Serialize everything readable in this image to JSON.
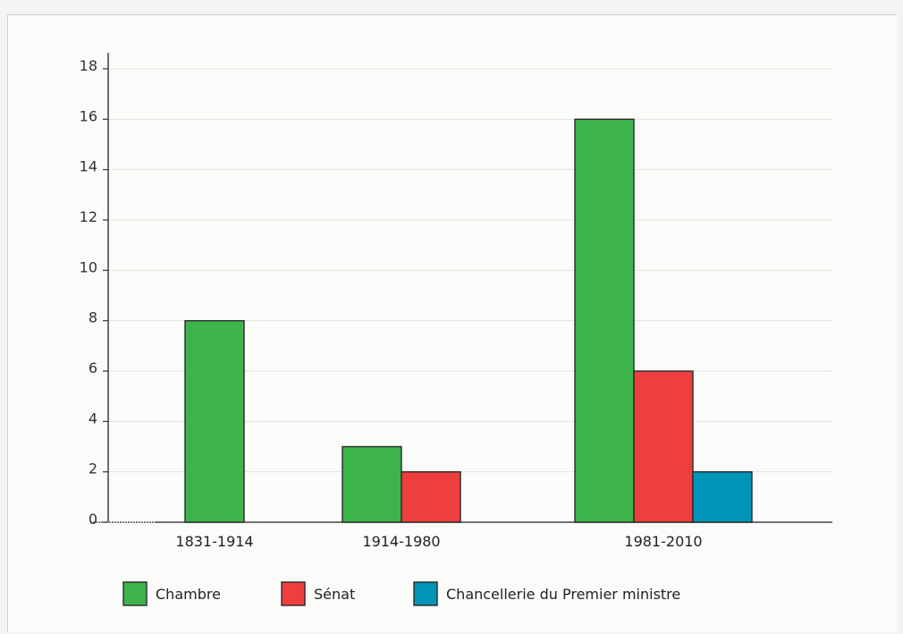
{
  "chart_data": {
    "type": "bar",
    "title": "",
    "xlabel": "",
    "ylabel": "",
    "categories": [
      "1831-1914",
      "1914-1980",
      "1981-2010"
    ],
    "series": [
      {
        "name": "Chambre",
        "color": "#3db54a",
        "values": [
          8,
          3,
          16
        ]
      },
      {
        "name": "Sénat",
        "color": "#ef3e3e",
        "values": [
          0,
          2,
          6
        ]
      },
      {
        "name": "Chancellerie du Premier ministre",
        "color": "#0094b8",
        "values": [
          0,
          0,
          2
        ]
      }
    ],
    "ylim": [
      0,
      18
    ],
    "yticks": [
      "0",
      "2",
      "4",
      "6",
      "8",
      "10",
      "12",
      "14",
      "16",
      "18"
    ],
    "grid": true,
    "legend_position": "bottom"
  }
}
